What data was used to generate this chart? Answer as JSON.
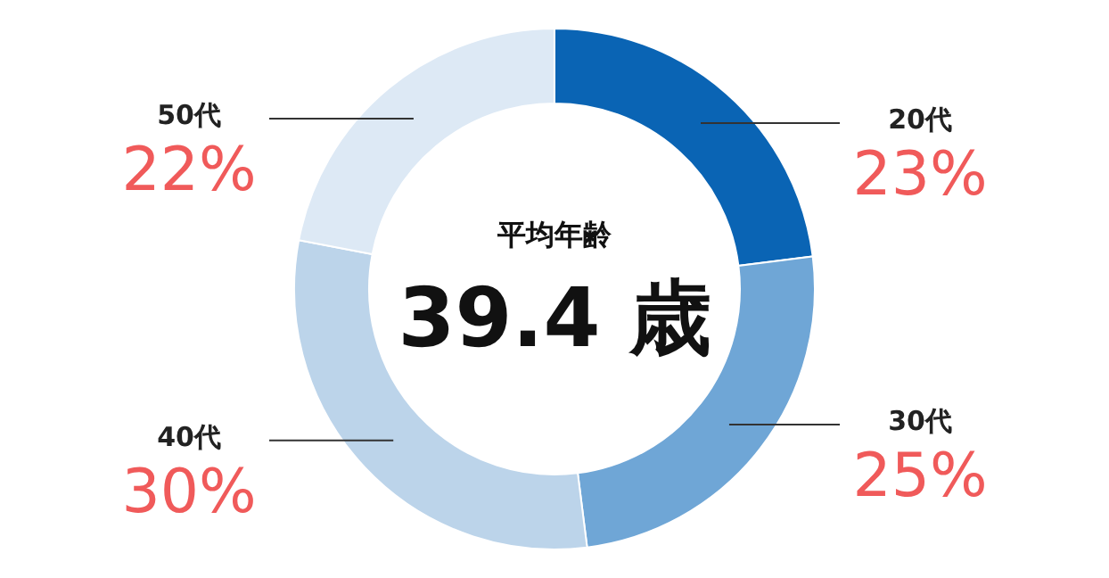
{
  "chart_data": {
    "type": "donut",
    "categories": [
      "20代",
      "30代",
      "40代",
      "50代"
    ],
    "values": [
      23,
      25,
      30,
      22
    ],
    "colors": [
      "#0a64b4",
      "#6fa6d6",
      "#bcd4ea",
      "#dde9f5"
    ],
    "value_labels": [
      "23%",
      "25%",
      "30%",
      "22%"
    ],
    "annotations": [
      "平均年齢",
      "39.4 歳"
    ]
  }
}
